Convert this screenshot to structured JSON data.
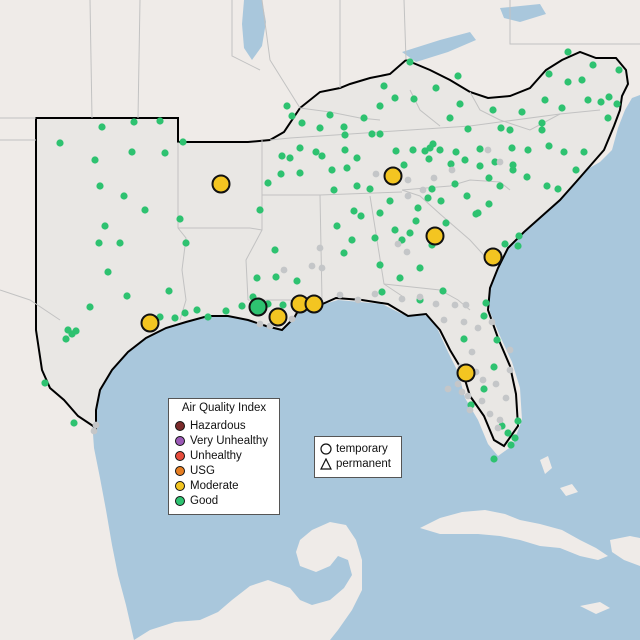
{
  "colors": {
    "water": "#a9c7dc",
    "land": "#efebe8",
    "region_fill": "#e9e7e4",
    "border": "#000000",
    "good": "#2ec270",
    "moderate": "#f3c521",
    "usg": "#e67e22",
    "unhealthy": "#e74c3c",
    "very_unhealthy": "#9b59b6",
    "hazardous": "#7b2b2b",
    "inactive": "#c4c6c8"
  },
  "legend": {
    "title": "Air Quality Index",
    "categories": [
      {
        "label": "Hazardous",
        "color": "#7b2b2b"
      },
      {
        "label": "Very Unhealthy",
        "color": "#9b59b6"
      },
      {
        "label": "Unhealthy",
        "color": "#e74c3c"
      },
      {
        "label": "USG",
        "color": "#e67e22"
      },
      {
        "label": "Moderate",
        "color": "#f3c521"
      },
      {
        "label": "Good",
        "color": "#2ec270"
      }
    ]
  },
  "monitor_types": {
    "temporary": "temporary",
    "permanent": "permanent"
  },
  "temporary_monitors": [
    {
      "category": "moderate",
      "region": "Arkansas"
    },
    {
      "category": "moderate",
      "region": "Tennessee"
    },
    {
      "category": "moderate",
      "region": "Georgia"
    },
    {
      "category": "moderate",
      "region": "South Carolina coast"
    },
    {
      "category": "moderate",
      "region": "Houston"
    },
    {
      "category": "good",
      "region": "Louisiana"
    },
    {
      "category": "moderate",
      "region": "New Orleans"
    },
    {
      "category": "moderate",
      "region": "Mississippi coast"
    },
    {
      "category": "moderate",
      "region": "Alabama coast"
    },
    {
      "category": "moderate",
      "region": "Florida"
    }
  ]
}
